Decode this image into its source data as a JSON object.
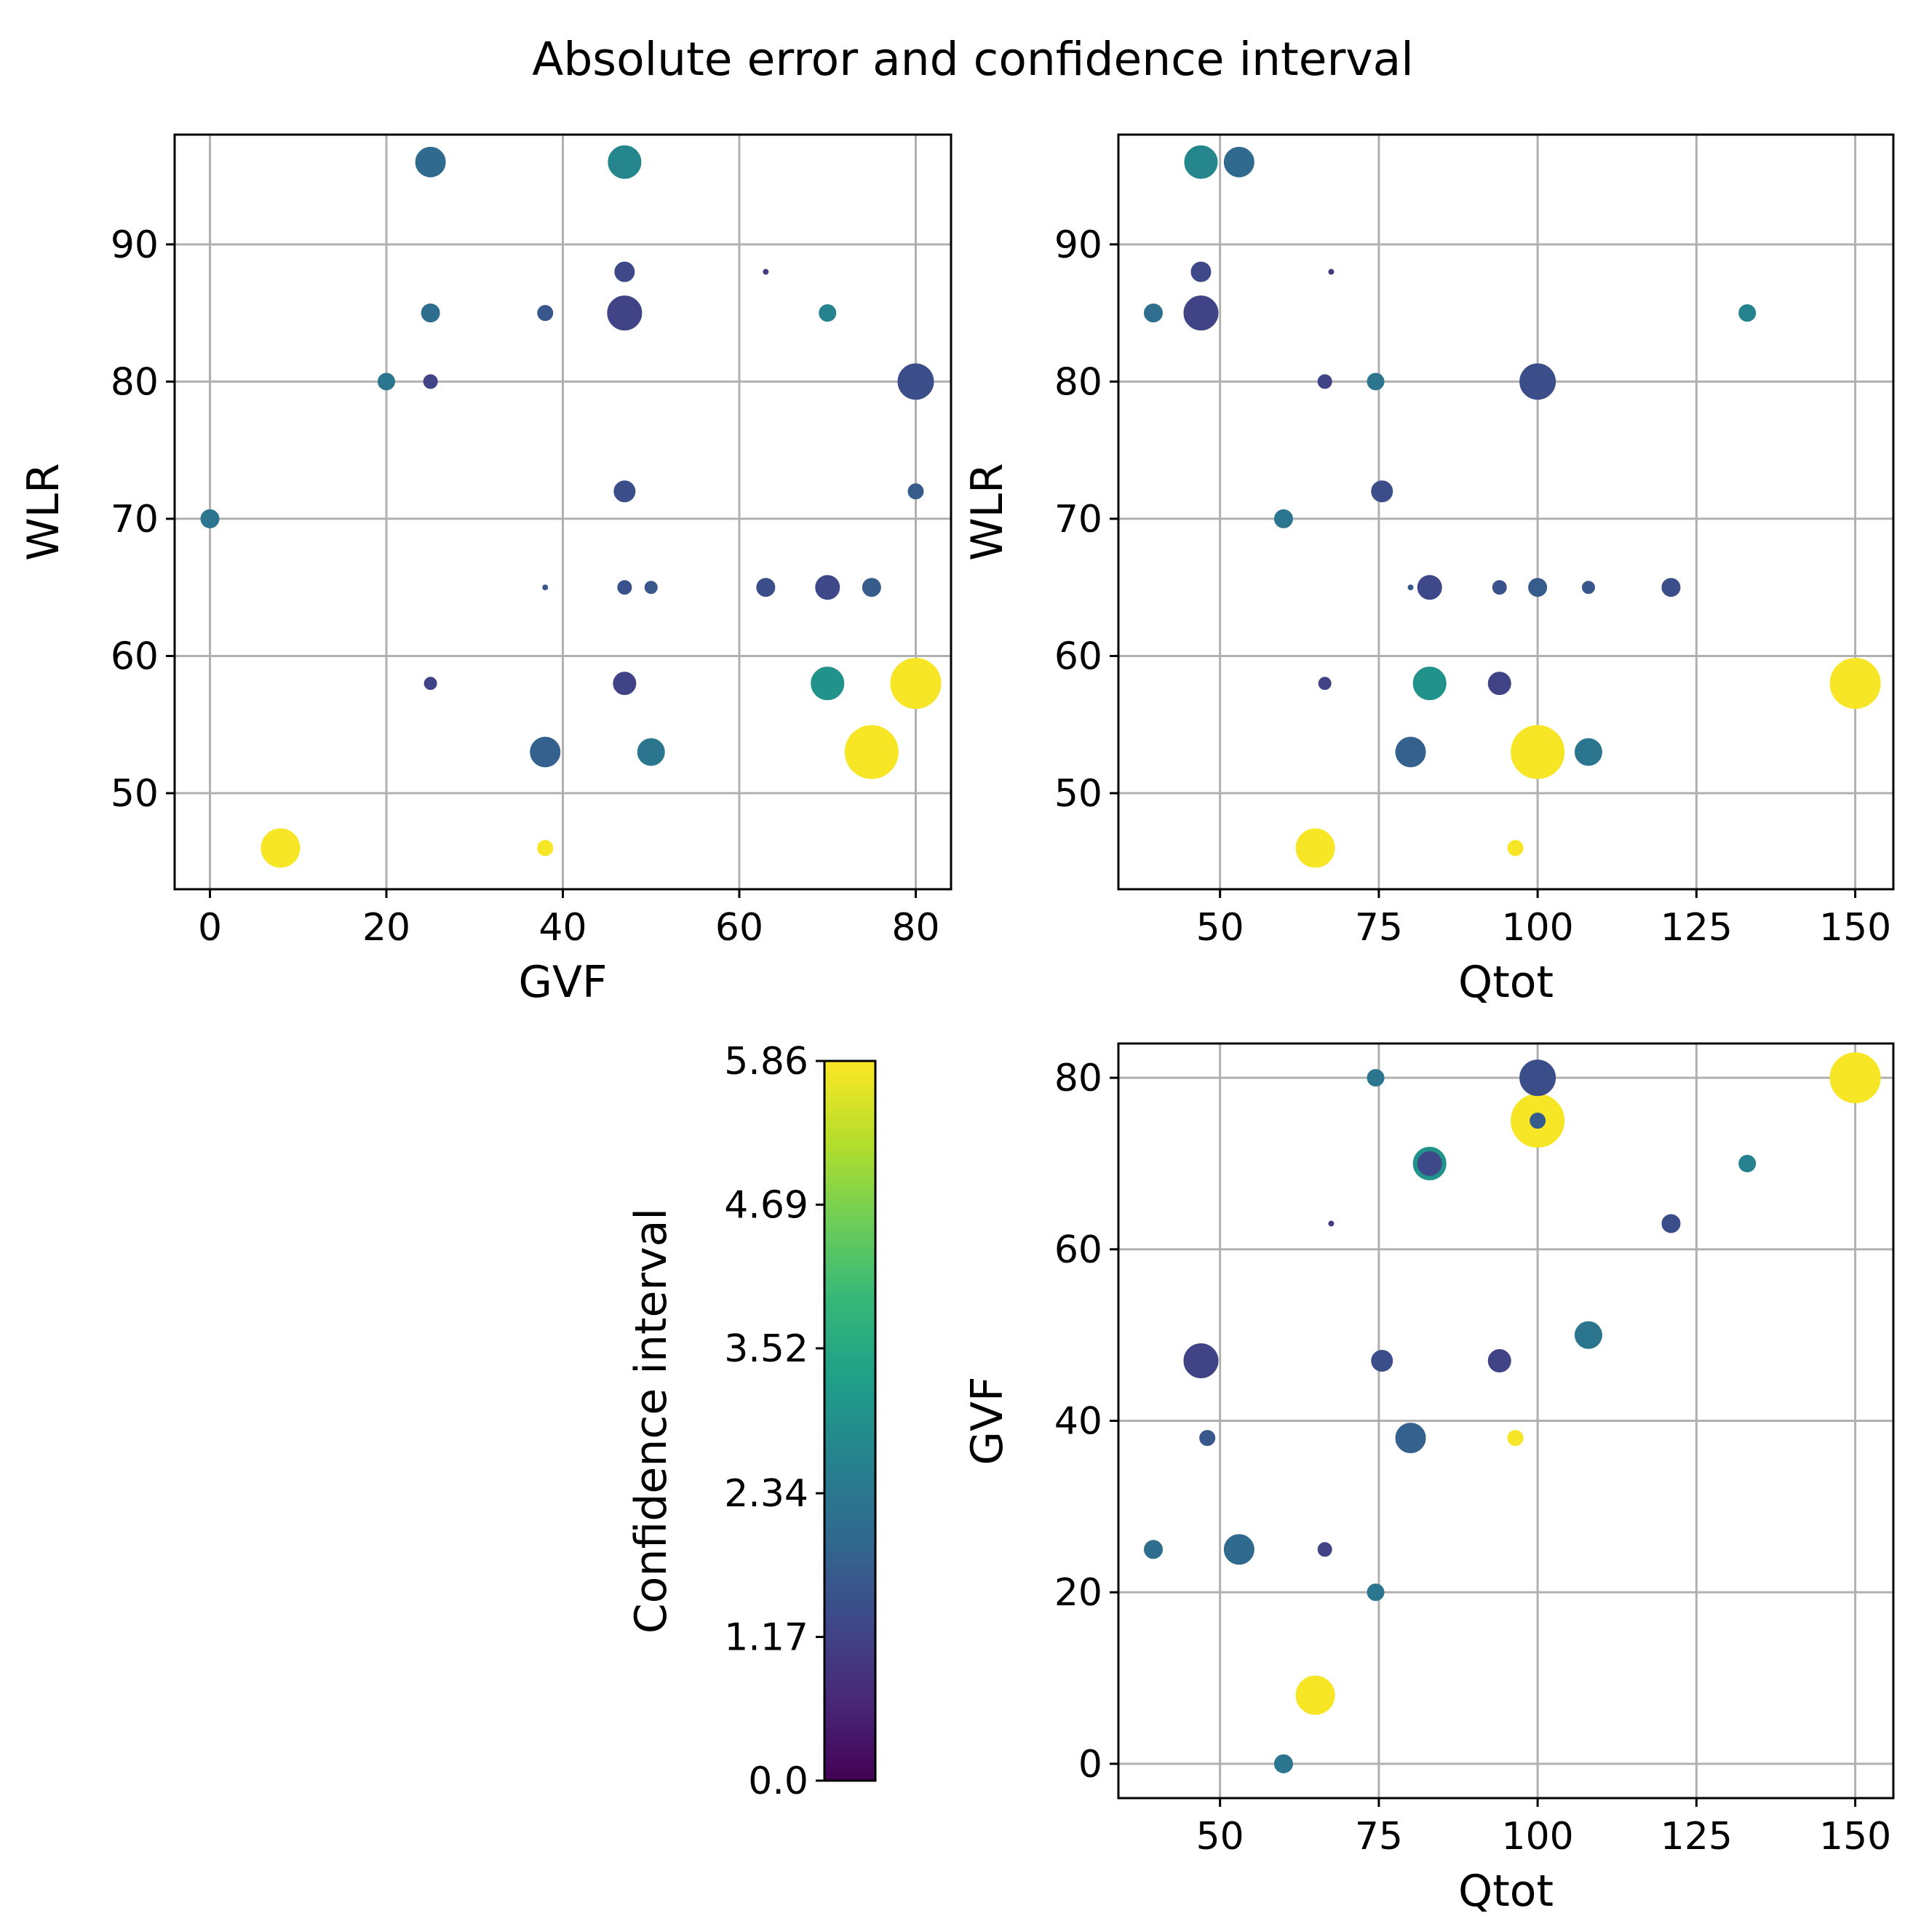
{
  "title": "Absolute error and confidence interval",
  "chart_data": [
    {
      "type": "scatter",
      "id": "wlr-vs-gvf",
      "xlabel": "GVF",
      "ylabel": "WLR",
      "xlim": [
        -4,
        84
      ],
      "ylim": [
        43,
        98
      ],
      "xticks": [
        0,
        20,
        40,
        60,
        80
      ],
      "yticks": [
        50,
        60,
        70,
        80,
        90
      ],
      "xtick_labels": [
        "0",
        "20",
        "40",
        "60",
        "80"
      ],
      "ytick_labels": [
        "50",
        "60",
        "70",
        "80",
        "90"
      ],
      "grid": true,
      "points": [
        {
          "x": 25,
          "y": 96,
          "size": 20,
          "ci": 2.0
        },
        {
          "x": 47,
          "y": 96,
          "size": 22,
          "ci": 2.7
        },
        {
          "x": 47,
          "y": 88,
          "size": 13,
          "ci": 1.3
        },
        {
          "x": 63,
          "y": 88,
          "size": 3,
          "ci": 1.0
        },
        {
          "x": 25,
          "y": 85,
          "size": 12,
          "ci": 2.1
        },
        {
          "x": 38,
          "y": 85,
          "size": 10,
          "ci": 1.6
        },
        {
          "x": 47,
          "y": 85,
          "size": 23,
          "ci": 1.2
        },
        {
          "x": 70,
          "y": 85,
          "size": 11,
          "ci": 2.6
        },
        {
          "x": 20,
          "y": 80,
          "size": 11,
          "ci": 2.3
        },
        {
          "x": 25,
          "y": 80,
          "size": 9,
          "ci": 1.2
        },
        {
          "x": 80,
          "y": 80,
          "size": 24,
          "ci": 1.4
        },
        {
          "x": 0,
          "y": 70,
          "size": 12,
          "ci": 2.3
        },
        {
          "x": 47,
          "y": 72,
          "size": 14,
          "ci": 1.4
        },
        {
          "x": 80,
          "y": 72,
          "size": 10,
          "ci": 1.7
        },
        {
          "x": 38,
          "y": 65,
          "size": 3,
          "ci": 1.6
        },
        {
          "x": 47,
          "y": 65,
          "size": 9,
          "ci": 1.5
        },
        {
          "x": 50,
          "y": 65,
          "size": 8,
          "ci": 1.6
        },
        {
          "x": 63,
          "y": 65,
          "size": 12,
          "ci": 1.4
        },
        {
          "x": 70,
          "y": 65,
          "size": 16,
          "ci": 1.3
        },
        {
          "x": 75,
          "y": 65,
          "size": 12,
          "ci": 1.7
        },
        {
          "x": 25,
          "y": 58,
          "size": 8,
          "ci": 1.2
        },
        {
          "x": 47,
          "y": 58,
          "size": 15,
          "ci": 1.2
        },
        {
          "x": 70,
          "y": 58,
          "size": 22,
          "ci": 3.0
        },
        {
          "x": 80,
          "y": 58,
          "size": 34,
          "ci": 5.8
        },
        {
          "x": 38,
          "y": 53,
          "size": 20,
          "ci": 1.8
        },
        {
          "x": 50,
          "y": 53,
          "size": 18,
          "ci": 2.3
        },
        {
          "x": 75,
          "y": 53,
          "size": 36,
          "ci": 5.8
        },
        {
          "x": 8,
          "y": 46,
          "size": 26,
          "ci": 5.8
        },
        {
          "x": 38,
          "y": 46,
          "size": 10,
          "ci": 5.8
        }
      ]
    },
    {
      "type": "scatter",
      "id": "wlr-vs-qtot",
      "xlabel": "Qtot",
      "ylabel": "WLR",
      "xlim": [
        34,
        156
      ],
      "ylim": [
        43,
        98
      ],
      "xticks": [
        50,
        75,
        100,
        125,
        150
      ],
      "yticks": [
        50,
        60,
        70,
        80,
        90
      ],
      "xtick_labels": [
        "50",
        "75",
        "100",
        "125",
        "150"
      ],
      "ytick_labels": [
        "50",
        "60",
        "70",
        "80",
        "90"
      ],
      "grid": true,
      "points": [
        {
          "x": 47,
          "y": 96,
          "size": 22,
          "ci": 2.7
        },
        {
          "x": 53,
          "y": 96,
          "size": 20,
          "ci": 2.0
        },
        {
          "x": 47,
          "y": 88,
          "size": 13,
          "ci": 1.3
        },
        {
          "x": 67.5,
          "y": 88,
          "size": 3,
          "ci": 1.0
        },
        {
          "x": 39.5,
          "y": 85,
          "size": 12,
          "ci": 2.1
        },
        {
          "x": 47,
          "y": 85,
          "size": 23,
          "ci": 1.2
        },
        {
          "x": 133,
          "y": 85,
          "size": 11,
          "ci": 2.6
        },
        {
          "x": 66.5,
          "y": 80,
          "size": 9,
          "ci": 1.2
        },
        {
          "x": 74.5,
          "y": 80,
          "size": 11,
          "ci": 2.3
        },
        {
          "x": 100,
          "y": 80,
          "size": 24,
          "ci": 1.4
        },
        {
          "x": 75.5,
          "y": 72,
          "size": 14,
          "ci": 1.4
        },
        {
          "x": 60,
          "y": 70,
          "size": 12,
          "ci": 2.3
        },
        {
          "x": 80,
          "y": 65,
          "size": 3,
          "ci": 1.6
        },
        {
          "x": 83,
          "y": 65,
          "size": 16,
          "ci": 1.3
        },
        {
          "x": 94,
          "y": 65,
          "size": 9,
          "ci": 1.5
        },
        {
          "x": 100,
          "y": 65,
          "size": 12,
          "ci": 1.7
        },
        {
          "x": 108,
          "y": 65,
          "size": 8,
          "ci": 1.6
        },
        {
          "x": 121,
          "y": 65,
          "size": 12,
          "ci": 1.4
        },
        {
          "x": 66.5,
          "y": 58,
          "size": 8,
          "ci": 1.2
        },
        {
          "x": 83,
          "y": 58,
          "size": 22,
          "ci": 3.0
        },
        {
          "x": 94,
          "y": 58,
          "size": 15,
          "ci": 1.2
        },
        {
          "x": 150,
          "y": 58,
          "size": 34,
          "ci": 5.8
        },
        {
          "x": 80,
          "y": 53,
          "size": 20,
          "ci": 1.8
        },
        {
          "x": 100,
          "y": 53,
          "size": 36,
          "ci": 5.8
        },
        {
          "x": 108,
          "y": 53,
          "size": 18,
          "ci": 2.3
        },
        {
          "x": 65,
          "y": 46,
          "size": 26,
          "ci": 5.8
        },
        {
          "x": 96.5,
          "y": 46,
          "size": 10,
          "ci": 5.8
        }
      ]
    },
    {
      "type": "scatter",
      "id": "gvf-vs-qtot",
      "xlabel": "Qtot",
      "ylabel": "GVF",
      "xlim": [
        34,
        156
      ],
      "ylim": [
        -4,
        84
      ],
      "xticks": [
        50,
        75,
        100,
        125,
        150
      ],
      "yticks": [
        0,
        20,
        40,
        60,
        80
      ],
      "xtick_labels": [
        "50",
        "75",
        "100",
        "125",
        "150"
      ],
      "ytick_labels": [
        "0",
        "20",
        "40",
        "60",
        "80"
      ],
      "grid": true,
      "points": [
        {
          "x": 74.5,
          "y": 80,
          "size": 11,
          "ci": 2.3
        },
        {
          "x": 100,
          "y": 80,
          "size": 24,
          "ci": 1.4
        },
        {
          "x": 150,
          "y": 80,
          "size": 34,
          "ci": 5.8
        },
        {
          "x": 100,
          "y": 75,
          "size": 36,
          "ci": 5.8
        },
        {
          "x": 100,
          "y": 75,
          "size": 10,
          "ci": 1.7
        },
        {
          "x": 83,
          "y": 70,
          "size": 22,
          "ci": 3.0
        },
        {
          "x": 83,
          "y": 70,
          "size": 16,
          "ci": 1.3
        },
        {
          "x": 133,
          "y": 70,
          "size": 11,
          "ci": 2.6
        },
        {
          "x": 67.5,
          "y": 63,
          "size": 3,
          "ci": 1.0
        },
        {
          "x": 121,
          "y": 63,
          "size": 12,
          "ci": 1.4
        },
        {
          "x": 108,
          "y": 50,
          "size": 18,
          "ci": 2.3
        },
        {
          "x": 47,
          "y": 47,
          "size": 23,
          "ci": 1.2
        },
        {
          "x": 75.5,
          "y": 47,
          "size": 14,
          "ci": 1.4
        },
        {
          "x": 94,
          "y": 47,
          "size": 15,
          "ci": 1.2
        },
        {
          "x": 48,
          "y": 38,
          "size": 10,
          "ci": 1.6
        },
        {
          "x": 80,
          "y": 38,
          "size": 20,
          "ci": 1.8
        },
        {
          "x": 96.5,
          "y": 38,
          "size": 10,
          "ci": 5.8
        },
        {
          "x": 39.5,
          "y": 25,
          "size": 12,
          "ci": 2.1
        },
        {
          "x": 53,
          "y": 25,
          "size": 20,
          "ci": 2.0
        },
        {
          "x": 66.5,
          "y": 25,
          "size": 9,
          "ci": 1.2
        },
        {
          "x": 74.5,
          "y": 20,
          "size": 11,
          "ci": 2.3
        },
        {
          "x": 65,
          "y": 8,
          "size": 26,
          "ci": 5.8
        },
        {
          "x": 60,
          "y": 0,
          "size": 12,
          "ci": 2.3
        }
      ]
    }
  ],
  "colorbar": {
    "label": "Confidence interval",
    "min": 0.0,
    "max": 5.86,
    "ticks": [
      0.0,
      1.17,
      2.34,
      3.52,
      4.69,
      5.86
    ],
    "tick_labels": [
      "0.0",
      "1.17",
      "2.34",
      "3.52",
      "4.69",
      "5.86"
    ],
    "colormap": "viridis",
    "colormap_stops": [
      "#440154",
      "#482878",
      "#3e4989",
      "#31688e",
      "#26828e",
      "#1f9e89",
      "#35b779",
      "#6ece58",
      "#b5de2b",
      "#fde725"
    ]
  }
}
